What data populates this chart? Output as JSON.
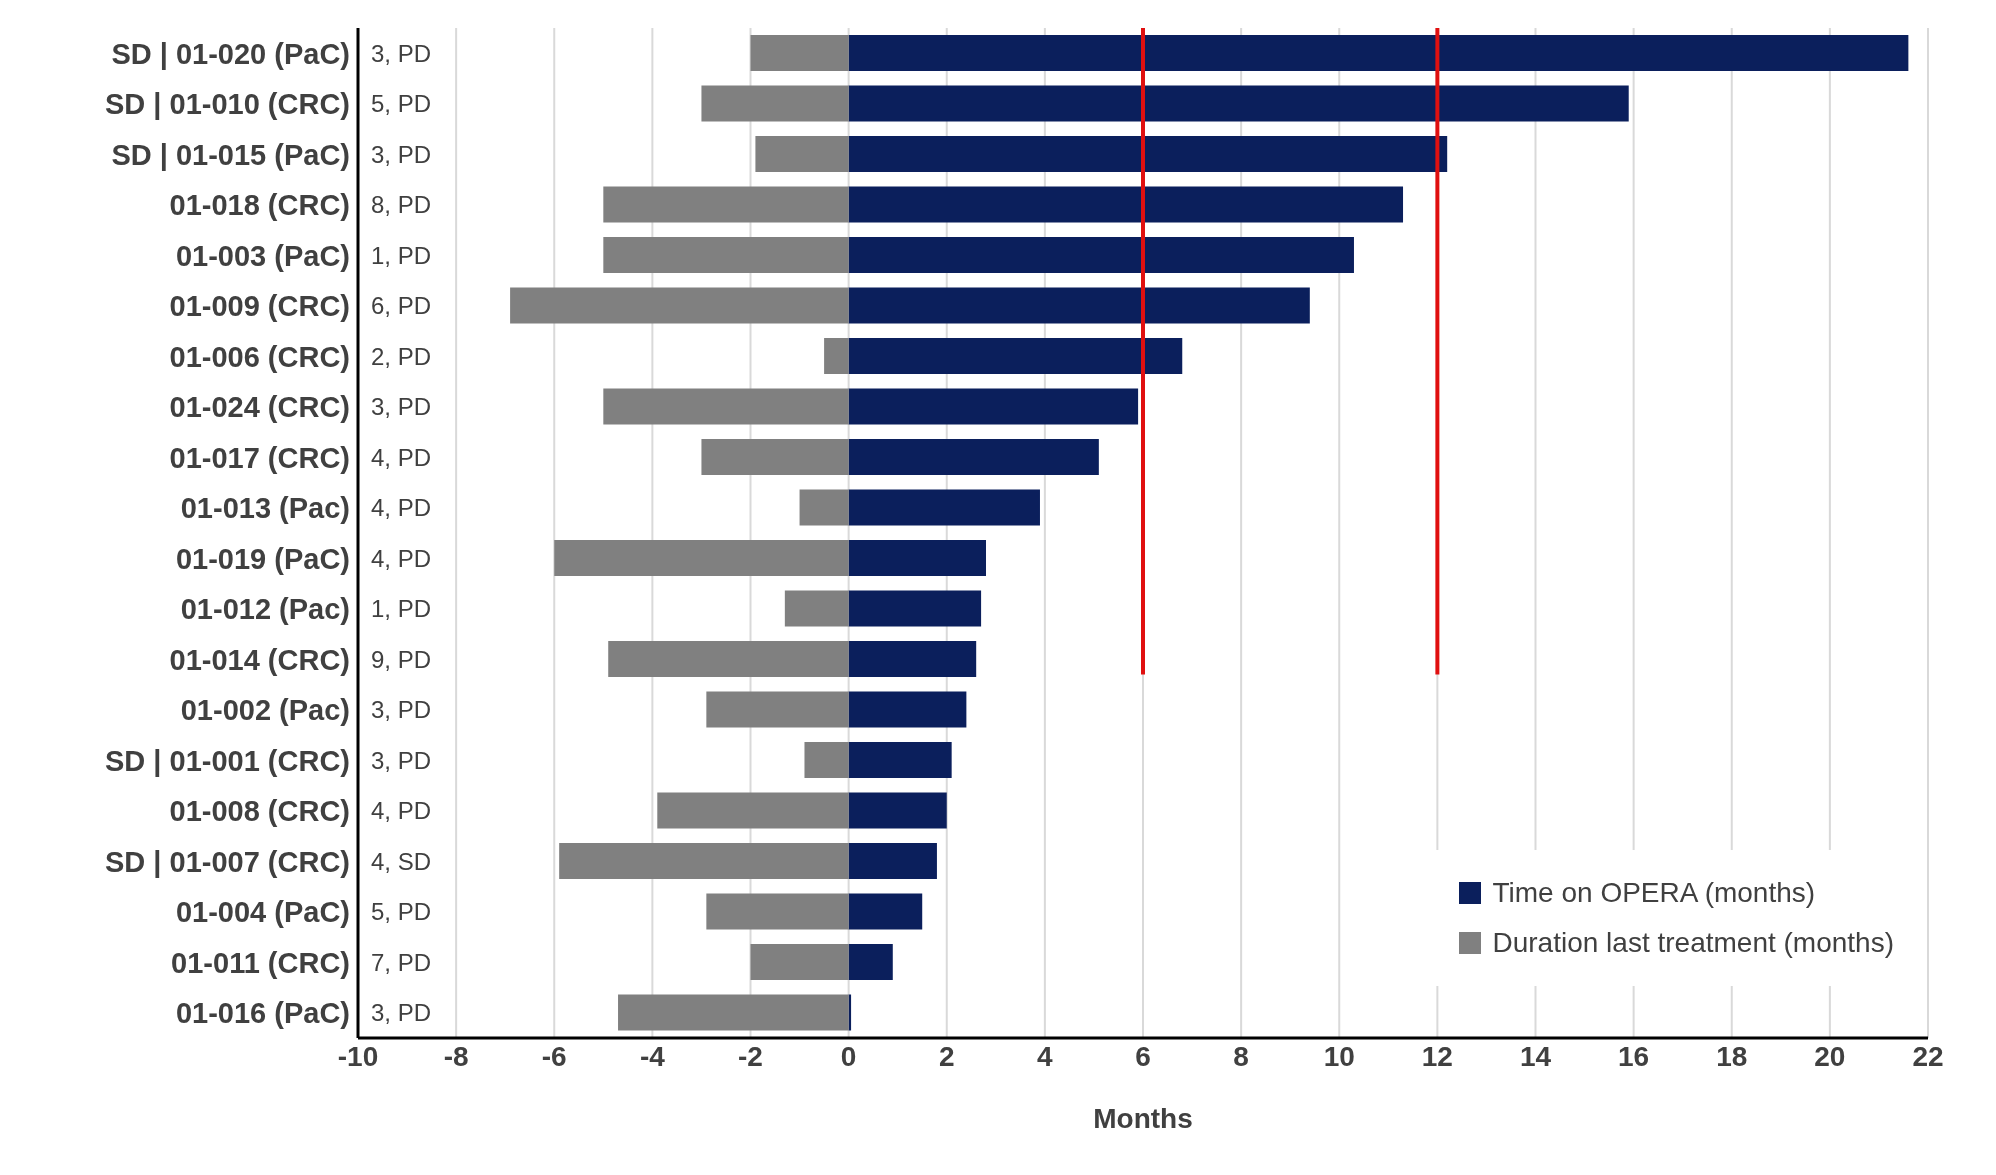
{
  "chart_data": {
    "type": "bar",
    "orientation": "horizontal",
    "stacked": true,
    "xlabel": "Months",
    "categories": [
      "SD | 01-020 (PaC)",
      "SD | 01-010 (CRC)",
      "SD | 01-015 (PaC)",
      "01-018 (CRC)",
      "01-003 (PaC)",
      "01-009 (CRC)",
      "01-006 (CRC)",
      "01-024 (CRC)",
      "01-017 (CRC)",
      "01-013 (Pac)",
      "01-019 (PaC)",
      "01-012 (Pac)",
      "01-014 (CRC)",
      "01-002 (Pac)",
      "SD | 01-001 (CRC)",
      "01-008 (CRC)",
      "SD | 01-007 (CRC)",
      "01-004 (PaC)",
      "01-011 (CRC)",
      "01-016 (PaC)"
    ],
    "series": [
      {
        "name": "Time on OPERA (months)",
        "color": "#0b1f5c",
        "values": [
          21.6,
          15.9,
          12.2,
          11.3,
          10.3,
          9.4,
          6.8,
          5.9,
          5.1,
          3.9,
          2.8,
          2.7,
          2.6,
          2.4,
          2.1,
          2.0,
          1.8,
          1.5,
          0.9,
          0.05
        ]
      },
      {
        "name": "Duration last treatment (months)",
        "color": "#808080",
        "values": [
          -2.0,
          -3.0,
          -1.9,
          -5.0,
          -5.0,
          -6.9,
          -0.5,
          -5.0,
          -3.0,
          -1.0,
          -6.0,
          -1.3,
          -4.9,
          -2.9,
          -0.9,
          -3.9,
          -5.9,
          -2.9,
          -2.0,
          -4.7
        ]
      }
    ],
    "annotations": [
      "3, PD",
      "5, PD",
      "3, PD",
      "8, PD",
      "1, PD",
      "6, PD",
      "2, PD",
      "3, PD",
      "4, PD",
      "4, PD",
      "4, PD",
      "1, PD",
      "9, PD",
      "3, PD",
      "3, PD",
      "4, PD",
      "4, SD",
      "5, PD",
      "7, PD",
      "3, PD"
    ],
    "ref_lines": [
      {
        "axis": "x",
        "value": 6,
        "color": "#e01010"
      },
      {
        "axis": "x",
        "value": 12,
        "color": "#e01010"
      }
    ],
    "xlim": [
      -10,
      22
    ],
    "xticks": [
      -10,
      -8,
      -6,
      -4,
      -2,
      0,
      2,
      4,
      6,
      8,
      10,
      12,
      14,
      16,
      18,
      20,
      22
    ],
    "grid": "x",
    "legend": "bottom right"
  }
}
